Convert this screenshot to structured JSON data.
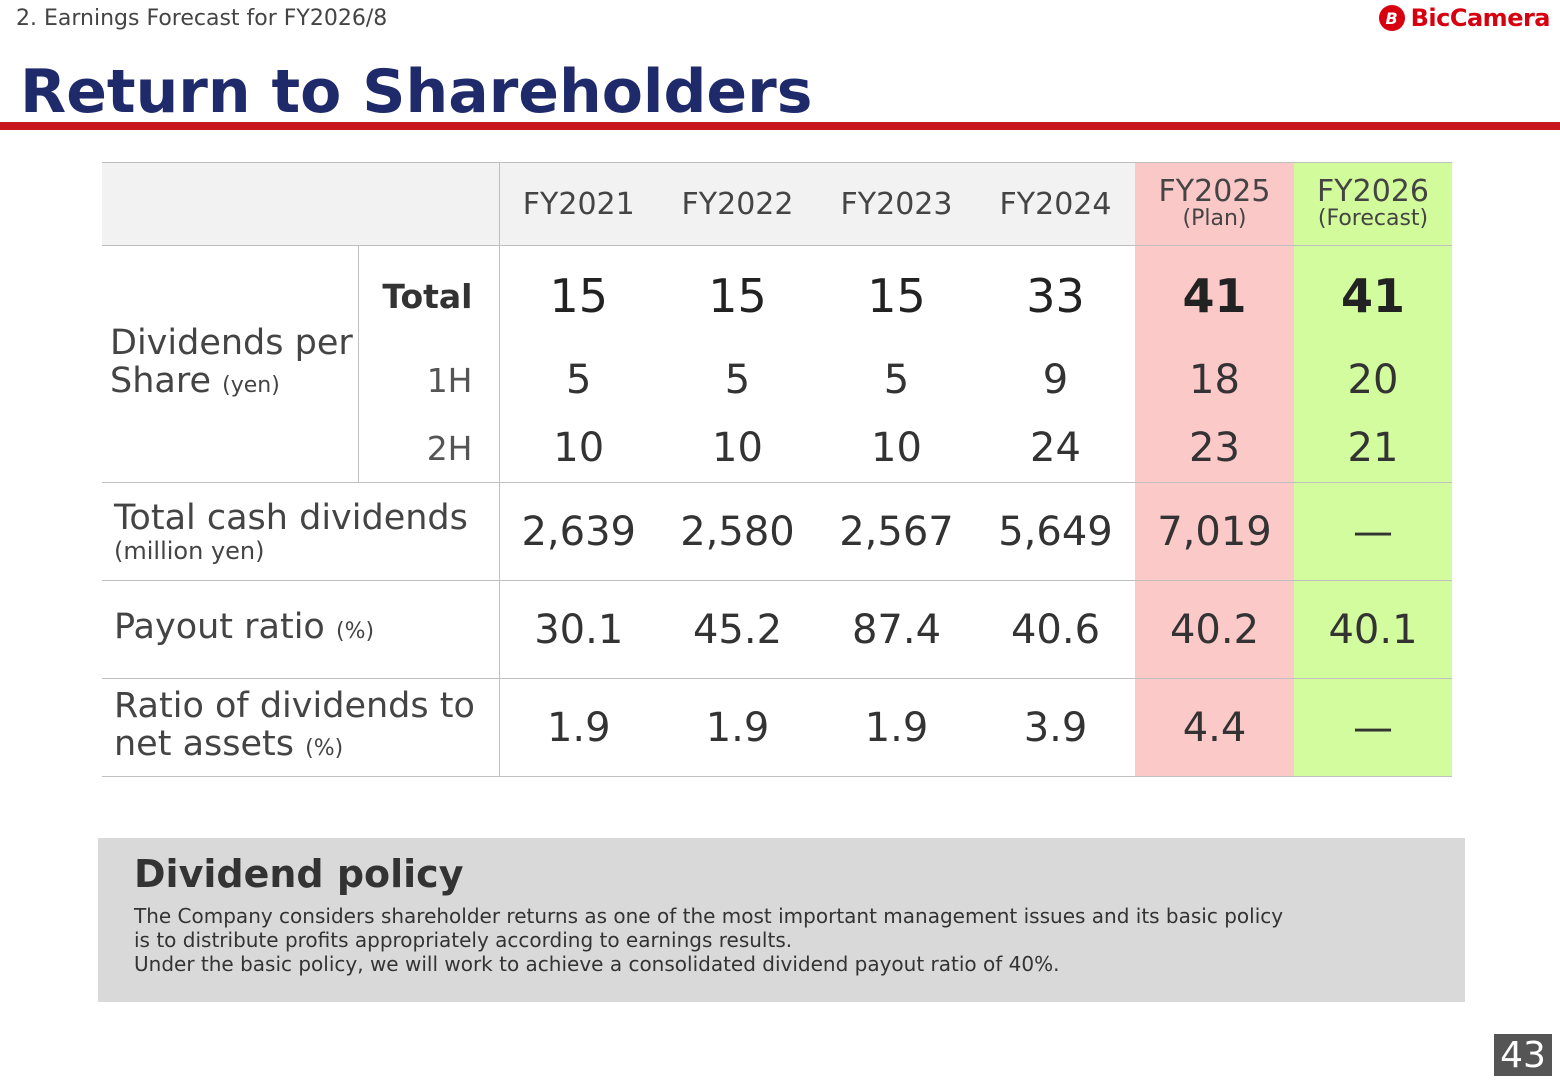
{
  "header": {
    "section_label": "2. Earnings Forecast for FY2026/8",
    "logo_mark": "B",
    "logo_text": "BicCamera",
    "title": "Return to Shareholders"
  },
  "table": {
    "years": [
      {
        "label": "FY2021",
        "sub": ""
      },
      {
        "label": "FY2022",
        "sub": ""
      },
      {
        "label": "FY2023",
        "sub": ""
      },
      {
        "label": "FY2024",
        "sub": ""
      },
      {
        "label": "FY2025",
        "sub": "(Plan)"
      },
      {
        "label": "FY2026",
        "sub": "(Forecast)"
      }
    ],
    "dps": {
      "label": "Dividends per Share",
      "unit": "(yen)",
      "total_label": "Total",
      "h1_label": "1H",
      "h2_label": "2H",
      "total": [
        "15",
        "15",
        "15",
        "33",
        "41",
        "41"
      ],
      "h1": [
        "5",
        "5",
        "5",
        "9",
        "18",
        "20"
      ],
      "h2": [
        "10",
        "10",
        "10",
        "24",
        "23",
        "21"
      ]
    },
    "cash": {
      "label": "Total cash dividends",
      "unit": "(million yen)",
      "values": [
        "2,639",
        "2,580",
        "2,567",
        "5,649",
        "7,019",
        "—"
      ]
    },
    "payout": {
      "label": "Payout ratio",
      "unit": "(%)",
      "values": [
        "30.1",
        "45.2",
        "87.4",
        "40.6",
        "40.2",
        "40.1"
      ]
    },
    "ratio": {
      "label_line1": "Ratio of dividends to",
      "label_line2": "net assets",
      "unit": "(%)",
      "values": [
        "1.9",
        "1.9",
        "1.9",
        "3.9",
        "4.4",
        "—"
      ]
    }
  },
  "policy": {
    "title": "Dividend policy",
    "line1": "The Company considers shareholder returns as one of the most important management issues and its basic policy",
    "line2": "is to distribute profits appropriately according to earnings results.",
    "line3": "Under the basic policy, we will work to achieve a consolidated dividend payout ratio of 40%."
  },
  "page_number": "43",
  "colors": {
    "title": "#1f2a6b",
    "accent_red": "#c8161d",
    "plan_bg": "#fcc9c9",
    "forecast_bg": "#d2fc9e",
    "policy_bg": "#d9d9d9"
  }
}
